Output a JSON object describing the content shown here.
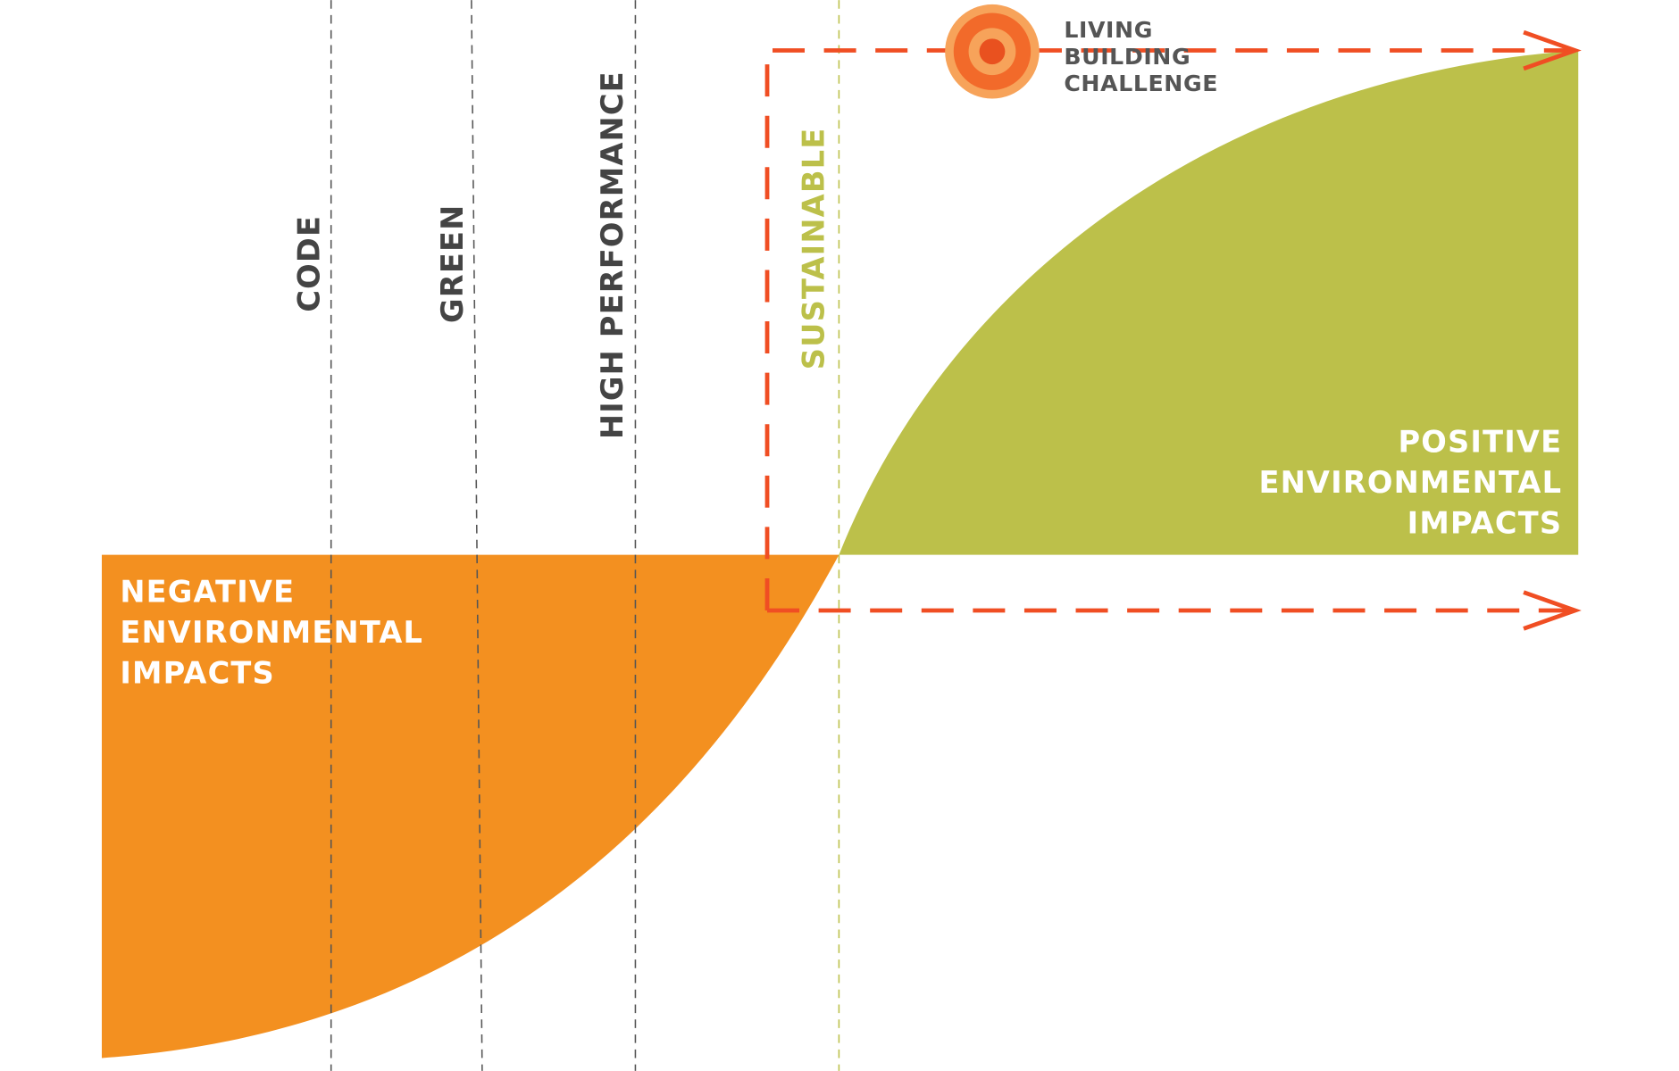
{
  "logo": {
    "lines": [
      "LIVING",
      "BUILDING",
      "CHALLENGE"
    ]
  },
  "levels": [
    {
      "label": "CODE"
    },
    {
      "label": "GREEN"
    },
    {
      "label": "HIGH PERFORMANCE"
    },
    {
      "label": "SUSTAINABLE"
    }
  ],
  "negative_label": {
    "lines": [
      "NEGATIVE",
      "ENVIRONMENTAL",
      "IMPACTS"
    ]
  },
  "positive_label": {
    "lines": [
      "POSITIVE",
      "ENVIRONMENTAL",
      "IMPACTS"
    ]
  }
}
